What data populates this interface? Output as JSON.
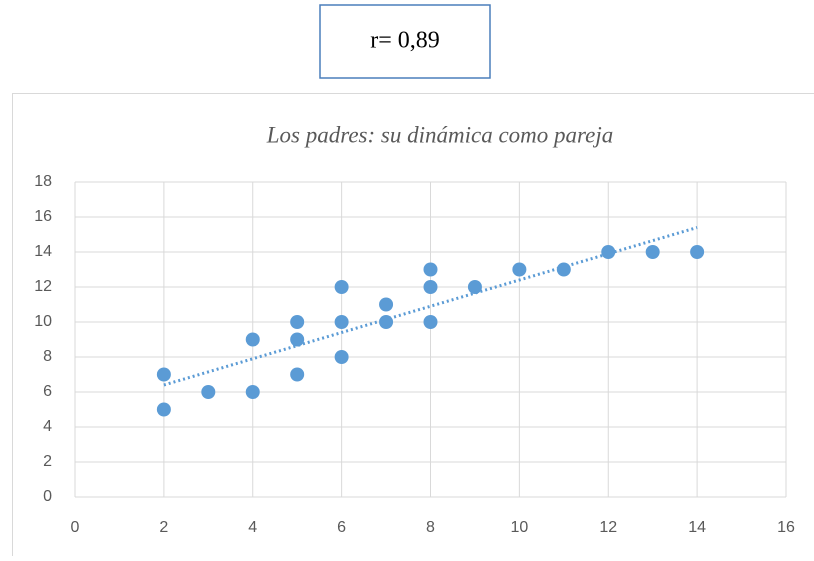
{
  "annotation": "r= 0,89",
  "chart_data": {
    "type": "scatter",
    "title": "Los padres: su dinámica como pareja",
    "color": "#5b9bd5",
    "x": [
      2,
      2,
      3,
      4,
      4,
      5,
      5,
      5,
      6,
      6,
      6,
      7,
      7,
      8,
      8,
      8,
      9,
      10,
      11,
      12,
      13,
      14
    ],
    "values": [
      7,
      5,
      6,
      9,
      6,
      10,
      9,
      7,
      12,
      10,
      8,
      11,
      10,
      13,
      12,
      10,
      12,
      13,
      13,
      14,
      14,
      14
    ],
    "trendline": {
      "x": [
        2,
        14
      ],
      "y": [
        6.4,
        15.4
      ],
      "color": "#5b9bd5"
    },
    "xlim": [
      0,
      16
    ],
    "xticks": [
      0,
      2,
      4,
      6,
      8,
      10,
      12,
      14,
      16
    ],
    "ylim": [
      0,
      18
    ],
    "yticks": [
      0,
      2,
      4,
      6,
      8,
      10,
      12,
      14,
      16,
      18
    ],
    "grid": true
  }
}
